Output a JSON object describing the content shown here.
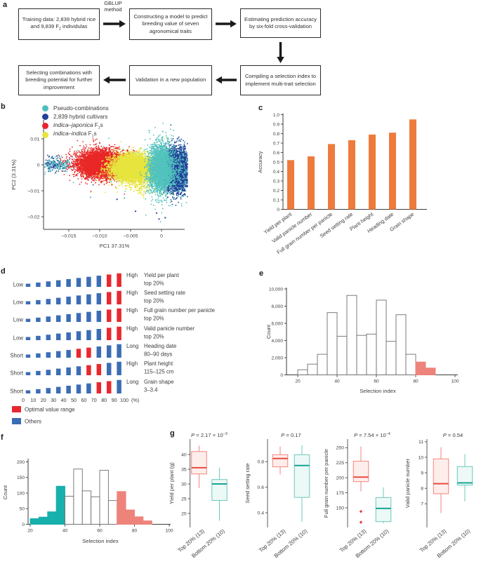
{
  "panels": {
    "a": {
      "letter": "a",
      "method_label": "GBLUP\nmethod",
      "boxes": [
        {
          "id": "training",
          "segments": [
            {
              "t": "Training data: 2,839 hybrid rice and 9,839 F"
            },
            {
              "t": "2",
              "sub": 1
            },
            {
              "t": " individulas"
            }
          ]
        },
        {
          "id": "model",
          "segments": [
            {
              "t": "Constructing a model to predict breeding value of seven agronomical traits"
            }
          ]
        },
        {
          "id": "accuracy",
          "segments": [
            {
              "t": "Estimating prediction accuracy by six-fold cross-validation"
            }
          ]
        },
        {
          "id": "index",
          "segments": [
            {
              "t": "Compiling a selection index to implement multi-trait selection"
            }
          ]
        },
        {
          "id": "validation",
          "segments": [
            {
              "t": "Validation in a new population"
            }
          ]
        },
        {
          "id": "selecting",
          "segments": [
            {
              "t": "Selecting combinations with breeding potential for further improvement"
            }
          ]
        }
      ]
    },
    "b": {
      "letter": "b"
    },
    "c": {
      "letter": "c"
    },
    "d": {
      "letter": "d"
    },
    "e": {
      "letter": "e"
    },
    "f": {
      "letter": "f"
    },
    "g": {
      "letter": "g"
    }
  },
  "chart_data": [
    {
      "id": "b",
      "type": "scatter",
      "xlabel": "PC1 37.31%",
      "ylabel": "PC2 (3.31%)",
      "xticks": {
        "values": [
          -0.015,
          -0.01,
          -0.005,
          0
        ],
        "labels": [
          "−0.015",
          "−0.010",
          "−0.005",
          "0"
        ]
      },
      "yticks": {
        "values": [
          0.01,
          0,
          -0.01,
          -0.02
        ],
        "labels": [
          "0.01",
          "0",
          "−0.01",
          "−0.02"
        ]
      },
      "legend": [
        {
          "color": "#4ec0bc",
          "segments": [
            {
              "t": "Pseudo-combinations"
            }
          ]
        },
        {
          "color": "#24409a",
          "segments": [
            {
              "t": "2,839 hybrid cultivars"
            }
          ]
        },
        {
          "color": "#e8252b",
          "segments": [
            {
              "t": "indica",
              "i": 1
            },
            {
              "t": "–"
            },
            {
              "t": "japonica",
              "i": 1
            },
            {
              "t": " F"
            },
            {
              "t": "1",
              "sub": 1
            },
            {
              "t": "s"
            }
          ]
        },
        {
          "color": "#e7e43e",
          "segments": [
            {
              "t": "indica",
              "i": 1
            },
            {
              "t": "–"
            },
            {
              "t": "indica",
              "i": 1
            },
            {
              "t": " F"
            },
            {
              "t": "1",
              "sub": 1
            },
            {
              "t": "s"
            }
          ]
        }
      ],
      "clusters": [
        {
          "color": "#52c3bd",
          "n": 260,
          "cx": -0.0045,
          "cy": 0.0002,
          "sx": 0.0048,
          "sy": 0.0035
        },
        {
          "color": "#24409a",
          "n": 70,
          "cx": -0.006,
          "cy": -0.001,
          "sx": 0.006,
          "sy": 0.003
        },
        {
          "color": "#24409a",
          "n": 150,
          "cx": -0.0172,
          "cy": 0.0003,
          "sx": 0.0012,
          "sy": 0.0013
        },
        {
          "color": "#52c3bd",
          "n": 150,
          "cx": -0.0169,
          "cy": 0.0002,
          "sx": 0.0014,
          "sy": 0.0014
        },
        {
          "color": "#e92828",
          "n": 6000,
          "cx": -0.0097,
          "cy": 0.0003,
          "sx": 0.0019,
          "sy": 0.0024
        },
        {
          "color": "#e92828",
          "n": 150,
          "cx": -0.0095,
          "cy": 0,
          "sx": 0.003,
          "sy": 0.004
        },
        {
          "color": "#e7e43e",
          "n": 6000,
          "cx": -0.0048,
          "cy": -0.0012,
          "sx": 0.0016,
          "sy": 0.0024
        },
        {
          "color": "#e7e43e",
          "n": 120,
          "cx": -0.0045,
          "cy": -0.002,
          "sx": 0.0028,
          "sy": 0.004
        },
        {
          "color": "#e7e43e",
          "n": 150,
          "cx": -0.0032,
          "cy": -0.008,
          "sx": 0.001,
          "sy": 0.0022
        },
        {
          "color": "#24409a",
          "n": 5000,
          "cx": 0.0024,
          "cy": -0.002,
          "sx": 0.00095,
          "sy": 0.0038
        },
        {
          "color": "#52c3bd",
          "n": 3000,
          "cx": -0.0001,
          "cy": -0.0015,
          "sx": 0.00095,
          "sy": 0.0045
        },
        {
          "color": "#52c3bd",
          "n": 300,
          "cx": 0.0028,
          "cy": -0.002,
          "sx": 0.0011,
          "sy": 0.0048
        }
      ],
      "outliers": [
        {
          "color": "#24409a",
          "pts": [
            [
              -0.0042,
              -0.0179
            ],
            [
              -0.0008,
              -0.0186
            ],
            [
              -0.0004,
              -0.0209
            ],
            [
              0.0006,
              -0.0204
            ],
            [
              -0.0072,
              -0.0133
            ],
            [
              0.001,
              -0.0125
            ]
          ]
        },
        {
          "color": "#52c3bd",
          "pts": [
            [
              -0.0115,
              -0.0125
            ],
            [
              -0.006,
              -0.0128
            ],
            [
              0.0035,
              -0.0122
            ],
            [
              -0.002,
              0.0132
            ],
            [
              0.0002,
              0.0128
            ]
          ]
        }
      ]
    },
    {
      "id": "c",
      "type": "bar",
      "categories": [
        "Yield per plant",
        "Valid panicle number",
        "Full grain number per panicle",
        "Seed setting rate",
        "Plant height",
        "Heading date",
        "Grain shape"
      ],
      "values": [
        0.52,
        0.56,
        0.69,
        0.73,
        0.79,
        0.81,
        0.95
      ],
      "ylabel": "Accuracy",
      "ylim": [
        0,
        1
      ],
      "yticks": {
        "values": [
          0,
          0.1,
          0.2,
          0.3,
          0.4,
          0.5,
          0.6,
          0.7,
          0.8,
          0.9,
          1
        ],
        "labels": [
          "0",
          "0.1",
          "0.2",
          "0.3",
          "0.4",
          "0.5",
          "0.6",
          "0.7",
          "0.8",
          "0.9",
          "1.0"
        ]
      },
      "bar_color": "#ee7b3c"
    },
    {
      "id": "d",
      "type": "bar-rows",
      "rows": [
        {
          "left": "Low",
          "right": "High",
          "trait": "Yield per plant",
          "range": "top 20%",
          "red": [
            8,
            9
          ]
        },
        {
          "left": "Low",
          "right": "High",
          "trait": "Seed setting rate",
          "range": "top 20%",
          "red": [
            8,
            9
          ]
        },
        {
          "left": "Low",
          "right": "High",
          "trait": "Full grain number per panicle",
          "range": "top 20%",
          "red": [
            8,
            9
          ]
        },
        {
          "left": "Low",
          "right": "High",
          "trait": "Valid panicle number",
          "range": "top 20%",
          "red": [
            8,
            9
          ]
        },
        {
          "left": "Short",
          "right": "Long",
          "trait": "Heading date",
          "range": "80–90 days",
          "red": [
            5,
            6
          ]
        },
        {
          "left": "Short",
          "right": "High",
          "trait": "Plant height",
          "range": "115–125 cm",
          "red": [
            6,
            7
          ]
        },
        {
          "left": "Short",
          "right": "Long",
          "trait": "Grain shape",
          "range": "3–3.4",
          "red": [
            7,
            8
          ]
        }
      ],
      "xticks": [
        "0",
        "10",
        "20",
        "30",
        "40",
        "50",
        "60",
        "70",
        "80",
        "90",
        "100"
      ],
      "xunit": "(%)",
      "colors": {
        "red": "#e8282f",
        "blue": "#3b6db4"
      },
      "legend": [
        {
          "label": "Optimal value range",
          "color": "#e8282f"
        },
        {
          "label": "Others",
          "color": "#3b6db4"
        }
      ]
    },
    {
      "id": "e",
      "type": "bar",
      "subtype": "histogram",
      "bin_start": 20,
      "bin_width": 5,
      "values": [
        600,
        1250,
        2400,
        7250,
        4500,
        9250,
        4600,
        4750,
        8700,
        3900,
        7000,
        2400,
        1500,
        800
      ],
      "bar_colors": [
        "white",
        "white",
        "white",
        "white",
        "white",
        "white",
        "white",
        "white",
        "white",
        "white",
        "white",
        "white",
        "salmon",
        "salmon"
      ],
      "ylabel": "Count",
      "xlabel": "Selection index",
      "yticks": {
        "values": [
          0,
          2000,
          4000,
          6000,
          8000,
          10000
        ],
        "labels": [
          "0",
          "2,000",
          "4,000",
          "6,000",
          "8,000",
          "10,000"
        ]
      },
      "xticks": {
        "values": [
          20,
          40,
          60,
          80,
          100
        ],
        "labels": [
          "20",
          "40",
          "60",
          "80",
          "100"
        ]
      },
      "colors": {
        "white": "#ffffff",
        "white_stroke": "#6e6e6e",
        "salmon": "#ee837b",
        "teal": "#17b0ac"
      }
    },
    {
      "id": "f",
      "type": "bar",
      "subtype": "histogram",
      "bin_start": 20,
      "bin_width": 5,
      "values": [
        18,
        23,
        40,
        122,
        90,
        177,
        107,
        88,
        173,
        76,
        105,
        46,
        24,
        11
      ],
      "bar_colors": [
        "teal",
        "teal",
        "teal",
        "teal",
        "white",
        "white",
        "white",
        "white",
        "white",
        "white",
        "salmon",
        "salmon",
        "salmon",
        "salmon"
      ],
      "ylabel": "Count",
      "xlabel": "Selection index",
      "yticks": {
        "values": [
          0,
          50,
          100,
          150,
          200
        ],
        "labels": [
          "0",
          "50",
          "100",
          "150",
          "200"
        ]
      },
      "xticks": {
        "values": [
          20,
          40,
          60,
          80,
          100
        ],
        "labels": [
          "20",
          "40",
          "60",
          "80",
          "100"
        ]
      },
      "colors": {
        "white": "#ffffff",
        "white_stroke": "#6e6e6e",
        "salmon": "#ee837b",
        "teal": "#17b0ac"
      }
    },
    {
      "id": "g",
      "type": "box",
      "categories": [
        "Top 20% (13)",
        "Bottom 20% (10)"
      ],
      "colors": {
        "red": {
          "stroke": "#f2857d",
          "median": "#e84b40",
          "fill": "#fdeeec"
        },
        "teal": {
          "stroke": "#6cc8bc",
          "median": "#16a496",
          "fill": "#edf9f6"
        }
      },
      "plots": [
        {
          "ylabel": "Yield per plant (g)",
          "p": {
            "base": "P = 2.17 × 10",
            "sup": "−3"
          },
          "yticks": {
            "values": [
              20,
              25,
              30,
              35,
              40
            ],
            "labels": [
              "20",
              "25",
              "30",
              "35",
              "40"
            ]
          },
          "boxes": [
            {
              "color": "red",
              "wl": 28.6,
              "q1": 33.4,
              "med": 35.5,
              "q3": 41,
              "wh": 43
            },
            {
              "color": "teal",
              "wl": 17.5,
              "q1": 24.4,
              "med": 30,
              "q3": 31.5,
              "wh": 35.5
            }
          ]
        },
        {
          "ylabel": "Seed setting rate",
          "p": {
            "base": "P = 0.17",
            "sup": ""
          },
          "yticks": {
            "values": [
              0.4,
              0.6,
              0.8
            ],
            "labels": [
              "0.4",
              "0.6",
              "0.8"
            ]
          },
          "boxes": [
            {
              "color": "red",
              "wl": 0.7,
              "q1": 0.76,
              "med": 0.825,
              "q3": 0.855,
              "wh": 0.92
            },
            {
              "color": "teal",
              "wl": 0.33,
              "q1": 0.52,
              "med": 0.77,
              "q3": 0.855,
              "wh": 0.93
            }
          ]
        },
        {
          "ylabel": "Full grain number per panicle",
          "p": {
            "base": "P = 7.54 × 10",
            "sup": "−4"
          },
          "yticks": {
            "values": [
              150,
              175,
              200,
              225,
              250
            ],
            "labels": [
              "150",
              "175",
              "200",
              "225",
              "250"
            ]
          },
          "boxes": [
            {
              "color": "red",
              "wl": 177,
              "q1": 193.5,
              "med": 201,
              "q3": 227.5,
              "wh": 252,
              "outliers": [
                144,
                126
              ]
            },
            {
              "color": "teal",
              "wl": 124,
              "q1": 127,
              "med": 149,
              "q3": 167,
              "wh": 184
            }
          ]
        },
        {
          "ylabel": "Valid panicle number",
          "p": {
            "base": "P = 0.54",
            "sup": ""
          },
          "yticks": {
            "values": [
              7,
              8,
              9,
              10,
              11
            ],
            "labels": [
              "7",
              "8",
              "9",
              "10",
              "11"
            ]
          },
          "boxes": [
            {
              "color": "red",
              "wl": 6.4,
              "q1": 7.65,
              "med": 8.3,
              "q3": 9.9,
              "wh": 10.65
            },
            {
              "color": "teal",
              "wl": 7.15,
              "q1": 8.2,
              "med": 8.35,
              "q3": 9.4,
              "wh": 10.2
            }
          ]
        }
      ]
    }
  ]
}
